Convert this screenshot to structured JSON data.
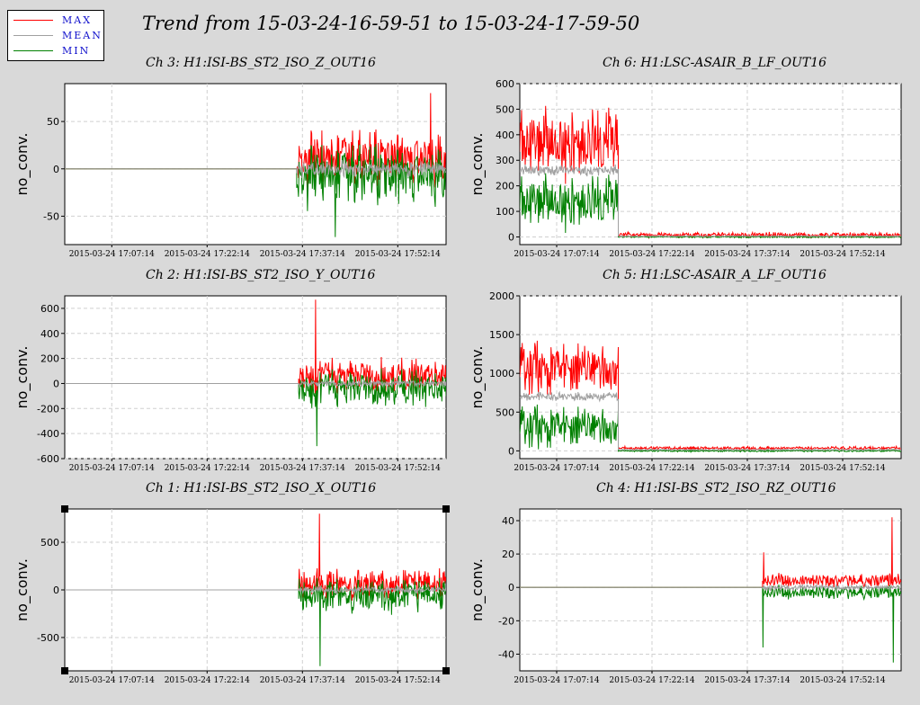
{
  "window": {
    "title": "Trend from 15-03-24-16-59-51 to 15-03-24-17-59-50"
  },
  "legend": {
    "items": [
      {
        "label": "MAX",
        "color": "#ff0000"
      },
      {
        "label": "MEAN",
        "color": "#a0a0a0"
      },
      {
        "label": "MIN",
        "color": "#008000"
      }
    ]
  },
  "chart_data": [
    {
      "type": "line",
      "title": "Ch 3: H1:ISI-BS_ST2_ISO_Z_OUT16",
      "ylabel": "no_conv.",
      "x_ticks": [
        "2015-03-24 17:07:14",
        "2015-03-24 17:22:14",
        "2015-03-24 17:37:14",
        "2015-03-24 17:52:14"
      ],
      "x_range_minutes": [
        0,
        60
      ],
      "x_tick_minutes": [
        7.4,
        22.4,
        37.4,
        52.4
      ],
      "yticks": [
        -50,
        0,
        50
      ],
      "ylim": [
        -80,
        90
      ],
      "grid": true,
      "selected": false,
      "series": [
        {
          "name": "MAX",
          "segments": [
            {
              "x": [
                0,
                36.5
              ],
              "level": 0,
              "amp": 0
            },
            {
              "x": [
                36.5,
                60
              ],
              "level": 10,
              "amp": 35
            }
          ],
          "spikes": [
            {
              "x": 57.5,
              "y": 80
            }
          ]
        },
        {
          "name": "MEAN",
          "segments": [
            {
              "x": [
                0,
                36.5
              ],
              "level": 0,
              "amp": 0
            },
            {
              "x": [
                36.5,
                60
              ],
              "level": 0,
              "amp": 10
            }
          ]
        },
        {
          "name": "MIN",
          "segments": [
            {
              "x": [
                0,
                36.5
              ],
              "level": 0,
              "amp": 0
            },
            {
              "x": [
                36.5,
                60
              ],
              "level": -8,
              "amp": 38
            }
          ],
          "spikes": [
            {
              "x": 42.5,
              "y": -72
            }
          ]
        }
      ]
    },
    {
      "type": "line",
      "title": "Ch 6: H1:LSC-ASAIR_B_LF_OUT16",
      "ylabel": "no_conv.",
      "x_ticks": [
        "2015-03-24 17:07:14",
        "2015-03-24 17:22:14",
        "2015-03-24 17:37:14",
        "2015-03-24 17:52:14"
      ],
      "x_range_minutes": [
        0,
        60
      ],
      "x_tick_minutes": [
        5.8,
        20.8,
        35.8,
        50.8
      ],
      "yticks": [
        0,
        100,
        200,
        300,
        400,
        500,
        600
      ],
      "ylim": [
        -30,
        600
      ],
      "grid": true,
      "selected": false,
      "series": [
        {
          "name": "MAX",
          "segments": [
            {
              "x": [
                0,
                15.5
              ],
              "level": 370,
              "amp": 170
            },
            {
              "x": [
                15.5,
                60
              ],
              "level": 8,
              "amp": 12
            }
          ]
        },
        {
          "name": "MEAN",
          "segments": [
            {
              "x": [
                0,
                15.5
              ],
              "level": 260,
              "amp": 25
            },
            {
              "x": [
                15.5,
                60
              ],
              "level": 3,
              "amp": 3
            }
          ]
        },
        {
          "name": "MIN",
          "segments": [
            {
              "x": [
                0,
                15.5
              ],
              "level": 140,
              "amp": 130
            },
            {
              "x": [
                15.5,
                60
              ],
              "level": 0,
              "amp": 4
            }
          ]
        }
      ]
    },
    {
      "type": "line",
      "title": "Ch 2: H1:ISI-BS_ST2_ISO_Y_OUT16",
      "ylabel": "no_conv.",
      "x_ticks": [
        "2015-03-24 17:07:14",
        "2015-03-24 17:22:14",
        "2015-03-24 17:37:14",
        "2015-03-24 17:52:14"
      ],
      "x_range_minutes": [
        0,
        60
      ],
      "x_tick_minutes": [
        7.4,
        22.4,
        37.4,
        52.4
      ],
      "yticks": [
        -600,
        -400,
        -200,
        0,
        200,
        400,
        600
      ],
      "ylim": [
        -600,
        700
      ],
      "grid": true,
      "selected": false,
      "series": [
        {
          "name": "MAX",
          "segments": [
            {
              "x": [
                0,
                36.8
              ],
              "level": 0,
              "amp": 0
            },
            {
              "x": [
                36.8,
                60
              ],
              "level": 60,
              "amp": 160
            }
          ],
          "spikes": [
            {
              "x": 39.4,
              "y": 670
            }
          ]
        },
        {
          "name": "MEAN",
          "segments": [
            {
              "x": [
                0,
                36.8
              ],
              "level": 0,
              "amp": 0
            },
            {
              "x": [
                36.8,
                60
              ],
              "level": 0,
              "amp": 30
            }
          ]
        },
        {
          "name": "MIN",
          "segments": [
            {
              "x": [
                0,
                36.8
              ],
              "level": 0,
              "amp": 0
            },
            {
              "x": [
                36.8,
                60
              ],
              "level": -40,
              "amp": 170
            }
          ],
          "spikes": [
            {
              "x": 39.6,
              "y": -500
            }
          ]
        }
      ]
    },
    {
      "type": "line",
      "title": "Ch 5: H1:LSC-ASAIR_A_LF_OUT16",
      "ylabel": "no_conv.",
      "x_ticks": [
        "2015-03-24 17:07:14",
        "2015-03-24 17:22:14",
        "2015-03-24 17:37:14",
        "2015-03-24 17:52:14"
      ],
      "x_range_minutes": [
        0,
        60
      ],
      "x_tick_minutes": [
        5.8,
        20.8,
        35.8,
        50.8
      ],
      "yticks": [
        0,
        500,
        1000,
        1500,
        2000
      ],
      "ylim": [
        -100,
        2000
      ],
      "grid": true,
      "selected": false,
      "series": [
        {
          "name": "MAX",
          "segments": [
            {
              "x": [
                0,
                15.5
              ],
              "level": 1050,
              "amp": 400
            },
            {
              "x": [
                15.5,
                60
              ],
              "level": 35,
              "amp": 25
            }
          ]
        },
        {
          "name": "MEAN",
          "segments": [
            {
              "x": [
                0,
                15.5
              ],
              "level": 700,
              "amp": 70
            },
            {
              "x": [
                15.5,
                60
              ],
              "level": 15,
              "amp": 8
            }
          ]
        },
        {
          "name": "MIN",
          "segments": [
            {
              "x": [
                0,
                15.5
              ],
              "level": 300,
              "amp": 320
            },
            {
              "x": [
                15.5,
                60
              ],
              "level": 0,
              "amp": 15
            }
          ]
        }
      ]
    },
    {
      "type": "line",
      "title": "Ch 1: H1:ISI-BS_ST2_ISO_X_OUT16",
      "ylabel": "no_conv.",
      "x_ticks": [
        "2015-03-24 17:07:14",
        "2015-03-24 17:22:14",
        "2015-03-24 17:37:14",
        "2015-03-24 17:52:14"
      ],
      "x_range_minutes": [
        0,
        60
      ],
      "x_tick_minutes": [
        7.4,
        22.4,
        37.4,
        52.4
      ],
      "yticks": [
        -500,
        0,
        500
      ],
      "ylim": [
        -850,
        850
      ],
      "grid": true,
      "selected": true,
      "series": [
        {
          "name": "MAX",
          "segments": [
            {
              "x": [
                0,
                36.8
              ],
              "level": 0,
              "amp": 0
            },
            {
              "x": [
                36.8,
                60
              ],
              "level": 60,
              "amp": 200
            }
          ],
          "spikes": [
            {
              "x": 40.0,
              "y": 800
            }
          ]
        },
        {
          "name": "MEAN",
          "segments": [
            {
              "x": [
                0,
                36.8
              ],
              "level": 0,
              "amp": 0
            },
            {
              "x": [
                36.8,
                60
              ],
              "level": 0,
              "amp": 40
            }
          ]
        },
        {
          "name": "MIN",
          "segments": [
            {
              "x": [
                0,
                36.8
              ],
              "level": 0,
              "amp": 0
            },
            {
              "x": [
                36.8,
                60
              ],
              "level": -60,
              "amp": 220
            }
          ],
          "spikes": [
            {
              "x": 40.1,
              "y": -800
            }
          ]
        }
      ]
    },
    {
      "type": "line",
      "title": "Ch 4: H1:ISI-BS_ST2_ISO_RZ_OUT16",
      "ylabel": "no_conv.",
      "x_ticks": [
        "2015-03-24 17:07:14",
        "2015-03-24 17:22:14",
        "2015-03-24 17:37:14",
        "2015-03-24 17:52:14"
      ],
      "x_range_minutes": [
        0,
        60
      ],
      "x_tick_minutes": [
        5.8,
        20.8,
        35.8,
        50.8
      ],
      "yticks": [
        -40,
        -20,
        0,
        20,
        40
      ],
      "ylim": [
        -50,
        47
      ],
      "grid": true,
      "selected": false,
      "series": [
        {
          "name": "MAX",
          "segments": [
            {
              "x": [
                0,
                38.2
              ],
              "level": 0,
              "amp": 0
            },
            {
              "x": [
                38.2,
                60
              ],
              "level": 4,
              "amp": 5
            }
          ],
          "spikes": [
            {
              "x": 38.3,
              "y": 21
            },
            {
              "x": 58.5,
              "y": 42
            }
          ]
        },
        {
          "name": "MEAN",
          "segments": [
            {
              "x": [
                0,
                38.2
              ],
              "level": 0,
              "amp": 0
            },
            {
              "x": [
                38.2,
                60
              ],
              "level": 0,
              "amp": 2
            }
          ]
        },
        {
          "name": "MIN",
          "segments": [
            {
              "x": [
                0,
                38.2
              ],
              "level": 0,
              "amp": 0
            },
            {
              "x": [
                38.2,
                60
              ],
              "level": -3,
              "amp": 5
            }
          ],
          "spikes": [
            {
              "x": 38.2,
              "y": -36
            },
            {
              "x": 58.7,
              "y": -45
            }
          ]
        }
      ]
    }
  ]
}
